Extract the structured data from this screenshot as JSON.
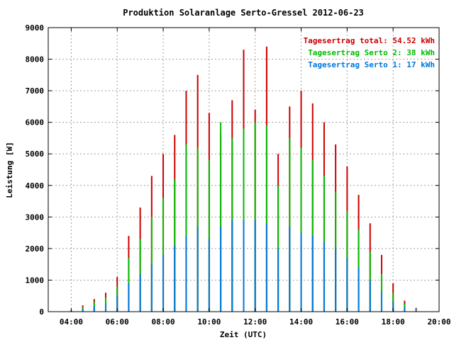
{
  "chart_data": {
    "type": "bar",
    "title": "Produktion Solaranlage Serto-Gressel 2012-06-23",
    "xlabel": "Zeit (UTC)",
    "ylabel": "Leistung [W]",
    "xlim": [
      "03:00",
      "20:00"
    ],
    "ylim": [
      0,
      9000
    ],
    "x_ticks": [
      "04:00",
      "06:00",
      "08:00",
      "10:00",
      "12:00",
      "14:00",
      "16:00",
      "18:00",
      "20:00"
    ],
    "y_ticks": [
      "0",
      "1000",
      "2000",
      "3000",
      "4000",
      "5000",
      "6000",
      "7000",
      "8000",
      "9000"
    ],
    "grid": true,
    "legend_position": "top-right",
    "legend": [
      {
        "text": "Tagesertrag total: 54.52 kWh",
        "color": "#cc0000"
      },
      {
        "text": "Tagesertrag Serto 2: 38 kWh",
        "color": "#00bb00"
      },
      {
        "text": "Tagesertrag Serto 1: 17 kWh",
        "color": "#0077dd"
      }
    ],
    "series": [
      {
        "color": "#cc0000",
        "x": [
          "04:00",
          "04:30",
          "05:00",
          "05:30",
          "06:00",
          "06:30",
          "07:00",
          "07:30",
          "08:00",
          "08:30",
          "09:00",
          "09:30",
          "10:00",
          "10:30",
          "11:00",
          "11:30",
          "12:00",
          "12:30",
          "13:00",
          "13:30",
          "14:00",
          "14:30",
          "15:00",
          "15:30",
          "16:00",
          "16:30",
          "17:00",
          "17:30",
          "18:00",
          "18:30",
          "19:00",
          "19:20"
        ],
        "values": [
          50,
          200,
          400,
          600,
          1100,
          2400,
          3300,
          4300,
          5000,
          5600,
          7000,
          7500,
          6300,
          5600,
          6700,
          8300,
          6400,
          8400,
          5000,
          6500,
          7000,
          6600,
          6000,
          5300,
          4600,
          3700,
          2800,
          1800,
          900,
          350,
          120,
          0
        ]
      },
      {
        "color": "#00bb00",
        "x": [
          "04:00",
          "04:30",
          "05:00",
          "05:30",
          "06:00",
          "06:30",
          "07:00",
          "07:30",
          "08:00",
          "08:30",
          "09:00",
          "09:30",
          "10:00",
          "10:30",
          "11:00",
          "11:30",
          "12:00",
          "12:30",
          "13:00",
          "13:30",
          "14:00",
          "14:30",
          "15:00",
          "15:30",
          "16:00",
          "16:30",
          "17:00",
          "17:30",
          "18:00",
          "18:30",
          "19:00",
          "19:20"
        ],
        "values": [
          30,
          140,
          300,
          450,
          800,
          1700,
          2300,
          3000,
          3600,
          4200,
          5300,
          5200,
          4800,
          6000,
          5500,
          5800,
          6000,
          5900,
          4000,
          5500,
          5200,
          4800,
          4300,
          3800,
          3200,
          2600,
          1900,
          1200,
          600,
          240,
          80,
          0
        ]
      },
      {
        "color": "#0077dd",
        "x": [
          "04:00",
          "04:30",
          "05:00",
          "05:30",
          "06:00",
          "06:30",
          "07:00",
          "07:30",
          "08:00",
          "08:30",
          "09:00",
          "09:30",
          "10:00",
          "10:30",
          "11:00",
          "11:30",
          "12:00",
          "12:30",
          "13:00",
          "13:30",
          "14:00",
          "14:30",
          "15:00",
          "15:30",
          "16:00",
          "16:30",
          "17:00",
          "17:30",
          "18:00",
          "18:30",
          "19:00",
          "19:20"
        ],
        "values": [
          20,
          80,
          170,
          230,
          500,
          900,
          1200,
          1500,
          1800,
          2100,
          2400,
          2700,
          2300,
          2700,
          2900,
          2900,
          2900,
          2800,
          2000,
          2700,
          2500,
          2400,
          2200,
          2000,
          1700,
          1400,
          1000,
          650,
          320,
          120,
          40,
          0
        ]
      }
    ]
  }
}
